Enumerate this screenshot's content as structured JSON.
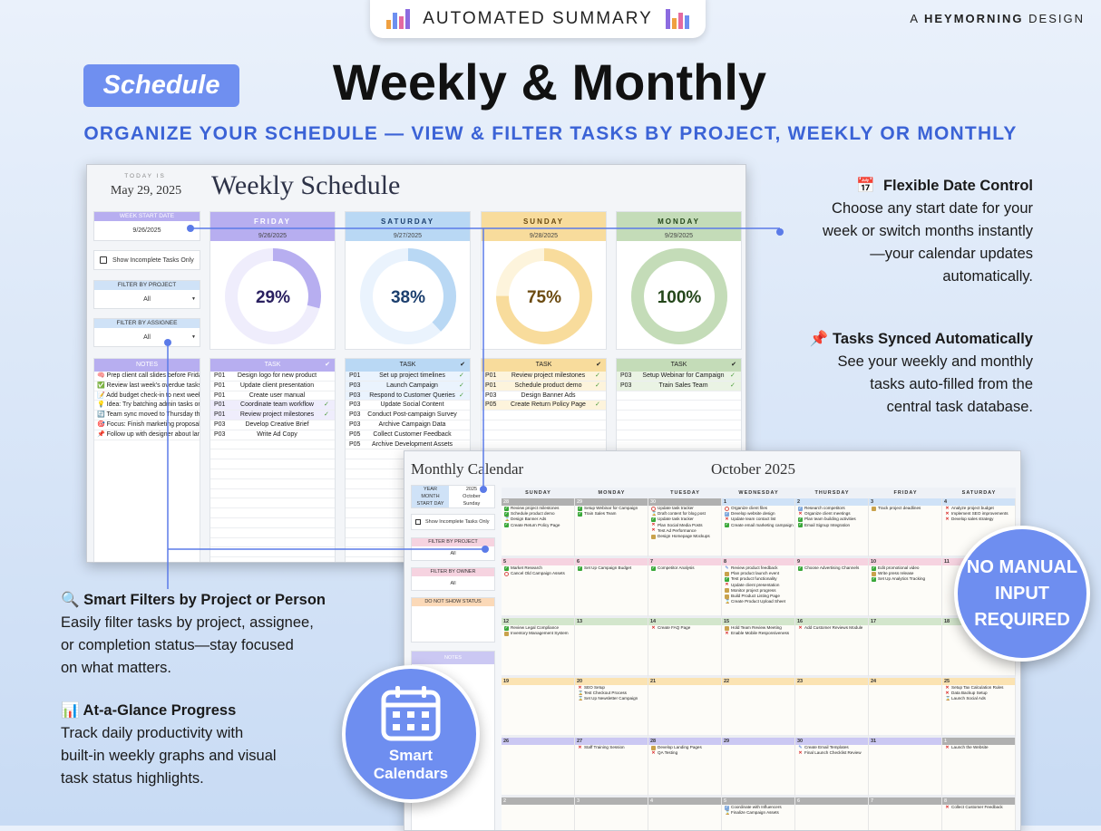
{
  "header": {
    "pill_label": "AUTOMATED SUMMARY",
    "brand_prefix": "A",
    "brand_name": "HEYMORNING",
    "brand_suffix": "DESIGN",
    "badge": "Schedule",
    "title": "Weekly & Monthly",
    "subtitle": "ORGANIZE YOUR SCHEDULE — VIEW & FILTER TASKS BY PROJECT, WEEKLY OR MONTHLY"
  },
  "colors": {
    "accent": "#6f8ff0",
    "subtitle": "#3b63d6",
    "connector": "#5b7be8"
  },
  "weekly": {
    "today_label": "TODAY IS",
    "today": "May 29, 2025",
    "title": "Weekly Schedule",
    "week_start_label": "WEEK START DATE",
    "week_start": "9/26/2025",
    "incomplete_label": "Show Incomplete Tasks Only",
    "filter_project_label": "FILTER BY PROJECT",
    "filter_project": "All",
    "filter_assignee_label": "FILTER BY ASSIGNEE",
    "filter_assignee": "All",
    "notes_label": "NOTES",
    "notes": [
      "🧠 Prep client call slides before Friday",
      "✅ Review last week's overdue tasks",
      "📝 Add budget check-in to next week's",
      "💡 Idea: Try batching admin tasks on T",
      "🔄 Team sync moved to Thursday this",
      "🎯 Focus: Finish marketing proposal b",
      "📌 Follow up with designer about land"
    ],
    "task_header": "TASK",
    "check_header": "✔",
    "days": [
      {
        "name": "FRIDAY",
        "date": "9/26/2025",
        "progress": 29,
        "color": "#b7aef0",
        "light": "#efedfc",
        "text": "#2a2060",
        "tasks": [
          [
            "P01",
            "Design logo for new product",
            false
          ],
          [
            "P01",
            "Update client presentation",
            false
          ],
          [
            "P01",
            "Create user manual",
            false
          ],
          [
            "P01",
            "Coordinate team workflow",
            true
          ],
          [
            "P01",
            "Review project milestones",
            true
          ],
          [
            "P03",
            "Develop Creative Brief",
            false
          ],
          [
            "P03",
            "Write Ad Copy",
            false
          ]
        ]
      },
      {
        "name": "SATURDAY",
        "date": "9/27/2025",
        "progress": 38,
        "color": "#b9d8f4",
        "light": "#eaf3fd",
        "text": "#1c3f6e",
        "tasks": [
          [
            "P01",
            "Set up project timelines",
            true
          ],
          [
            "P03",
            "Launch Campaign",
            true
          ],
          [
            "P03",
            "Respond to Customer Queries",
            true
          ],
          [
            "P03",
            "Update Social Content",
            false
          ],
          [
            "P03",
            "Conduct Post-campaign Survey",
            false
          ],
          [
            "P03",
            "Archive Campaign Data",
            false
          ],
          [
            "P05",
            "Collect Customer Feedback",
            false
          ],
          [
            "P05",
            "Archive Development Assets",
            false
          ]
        ]
      },
      {
        "name": "SUNDAY",
        "date": "9/28/2025",
        "progress": 75,
        "color": "#f8dc9c",
        "light": "#fdf4dc",
        "text": "#6b4a10",
        "tasks": [
          [
            "P01",
            "Review project milestones",
            true
          ],
          [
            "P01",
            "Schedule product demo",
            true
          ],
          [
            "P03",
            "Design Banner Ads",
            false
          ],
          [
            "P05",
            "Create Return Policy Page",
            true
          ]
        ]
      },
      {
        "name": "MONDAY",
        "date": "9/29/2025",
        "progress": 100,
        "color": "#c4dcb8",
        "light": "#eaf3e4",
        "text": "#24461a",
        "tasks": [
          [
            "P03",
            "Setup Webinar for Campaign",
            true
          ],
          [
            "P03",
            "Train Sales Team",
            true
          ]
        ]
      }
    ]
  },
  "monthly": {
    "title": "Monthly Calendar",
    "month_title": "October 2025",
    "year_label": "YEAR",
    "year": "2025",
    "month_label": "MONTH",
    "month": "October",
    "start_day_label": "START DAY",
    "start_day": "Sunday",
    "incomplete_label": "Show Incomplete Tasks Only",
    "filter_project_label": "FILTER BY PROJECT",
    "filter_project": "All",
    "filter_owner_label": "FILTER BY OWNER",
    "filter_owner": "All",
    "do_not_show_label": "DO NOT SHOW STATUS",
    "notes_label": "NOTES",
    "weekdays": [
      "SUNDAY",
      "MONDAY",
      "TUESDAY",
      "WEDNESDAY",
      "THURSDAY",
      "FRIDAY",
      "SATURDAY"
    ],
    "weeks": [
      {
        "color": "#cfe2f7",
        "days": [
          {
            "d": "28",
            "other": true,
            "tasks": [
              [
                "done",
                "Review project milestones"
              ],
              [
                "done",
                "Schedule product demo"
              ],
              [
                "hour",
                "Design Banner Ads"
              ],
              [
                "done",
                "Create Return Policy Page"
              ]
            ]
          },
          {
            "d": "29",
            "other": true,
            "tasks": [
              [
                "done",
                "Setup Webinar for Campaign"
              ],
              [
                "done",
                "Train Sales Team"
              ]
            ]
          },
          {
            "d": "30",
            "other": true,
            "tasks": [
              [
                "block",
                "Update task tracker"
              ],
              [
                "hour",
                "Draft content for blog post"
              ],
              [
                "done",
                "Update task tracker"
              ],
              [
                "x",
                "Plan Social Media Posts"
              ],
              [
                "x",
                "Test Ad Performance"
              ],
              [
                "plan",
                "Design Homepage Mockups"
              ]
            ]
          },
          {
            "d": "1",
            "tasks": [
              [
                "block",
                "Organize client files"
              ],
              [
                "review",
                "Develop website design"
              ],
              [
                "x",
                "Update team contact list"
              ],
              [
                "done",
                "Create email marketing campaign"
              ]
            ]
          },
          {
            "d": "2",
            "tasks": [
              [
                "review",
                "Research competitors"
              ],
              [
                "x",
                "Organize client meetings"
              ],
              [
                "done",
                "Plan team building activities"
              ],
              [
                "done",
                "Email Signup Integration"
              ]
            ]
          },
          {
            "d": "3",
            "tasks": [
              [
                "plan",
                "Track project deadlines"
              ]
            ]
          },
          {
            "d": "4",
            "tasks": [
              [
                "x",
                "Analyze project budget"
              ],
              [
                "x",
                "Implement SEO improvements"
              ],
              [
                "x",
                "Develop sales strategy"
              ]
            ]
          }
        ]
      },
      {
        "color": "#f6d3e0",
        "days": [
          {
            "d": "5",
            "tasks": [
              [
                "done",
                "Market Research"
              ],
              [
                "block",
                "Cancel Old Campaign Assets"
              ]
            ]
          },
          {
            "d": "6",
            "tasks": [
              [
                "done",
                "Set Up Campaign Budget"
              ]
            ]
          },
          {
            "d": "7",
            "tasks": [
              [
                "done",
                "Competitor Analysis"
              ]
            ]
          },
          {
            "d": "8",
            "tasks": [
              [
                "edit",
                "Review product feedback"
              ],
              [
                "plan",
                "Plan product launch event"
              ],
              [
                "done",
                "Test product functionality"
              ],
              [
                "x",
                "Update client presentation"
              ],
              [
                "plan",
                "Monitor project progress"
              ],
              [
                "plan",
                "Build Product Listing Page"
              ],
              [
                "hour",
                "Create Product Upload Sheet"
              ]
            ]
          },
          {
            "d": "9",
            "tasks": [
              [
                "done",
                "Choose Advertising Channels"
              ]
            ]
          },
          {
            "d": "10",
            "tasks": [
              [
                "done",
                "Edit promotional video"
              ],
              [
                "plan",
                "Write press release"
              ],
              [
                "done",
                "Set Up Analytics Tracking"
              ]
            ]
          },
          {
            "d": "11",
            "tasks": []
          }
        ]
      },
      {
        "color": "#d3e6cc",
        "days": [
          {
            "d": "12",
            "tasks": [
              [
                "done",
                "Review Legal Compliance"
              ],
              [
                "plan",
                "Inventory Management System"
              ]
            ]
          },
          {
            "d": "13",
            "tasks": []
          },
          {
            "d": "14",
            "tasks": [
              [
                "x",
                "Create FAQ Page"
              ]
            ]
          },
          {
            "d": "15",
            "tasks": [
              [
                "plan",
                "Hold Team Review Meeting"
              ],
              [
                "x",
                "Enable Mobile Responsiveness"
              ]
            ]
          },
          {
            "d": "16",
            "tasks": [
              [
                "x",
                "Add Customer Reviews Module"
              ]
            ]
          },
          {
            "d": "17",
            "tasks": []
          },
          {
            "d": "18",
            "tasks": []
          }
        ]
      },
      {
        "color": "#fbe3b2",
        "days": [
          {
            "d": "19",
            "tasks": []
          },
          {
            "d": "20",
            "tasks": [
              [
                "x",
                "SEO Setup"
              ],
              [
                "hour",
                "Test Checkout Process"
              ],
              [
                "hour",
                "Set Up Newsletter Campaign"
              ]
            ]
          },
          {
            "d": "21",
            "tasks": []
          },
          {
            "d": "22",
            "tasks": []
          },
          {
            "d": "23",
            "tasks": []
          },
          {
            "d": "24",
            "tasks": []
          },
          {
            "d": "25",
            "tasks": [
              [
                "x",
                "Setup Tax Calculation Rules"
              ],
              [
                "x",
                "Data Backup Setup"
              ],
              [
                "hour",
                "Launch Social Ads"
              ]
            ]
          }
        ]
      },
      {
        "color": "#cbc8f3",
        "days": [
          {
            "d": "26",
            "tasks": []
          },
          {
            "d": "27",
            "tasks": [
              [
                "x",
                "Staff Training Session"
              ]
            ]
          },
          {
            "d": "28",
            "tasks": [
              [
                "plan",
                "Develop Landing Pages"
              ],
              [
                "x",
                "QA Testing"
              ]
            ]
          },
          {
            "d": "29",
            "tasks": []
          },
          {
            "d": "30",
            "tasks": [
              [
                "edit",
                "Create Email Templates"
              ],
              [
                "x",
                "Final Launch Checklist Review"
              ]
            ]
          },
          {
            "d": "31",
            "tasks": []
          },
          {
            "d": "1",
            "other": true,
            "tasks": [
              [
                "x",
                "Launch the Website"
              ]
            ]
          }
        ]
      },
      {
        "color": "#b0b0b0",
        "days": [
          {
            "d": "2",
            "other": true,
            "tasks": []
          },
          {
            "d": "3",
            "other": true,
            "tasks": []
          },
          {
            "d": "4",
            "other": true,
            "tasks": []
          },
          {
            "d": "5",
            "other": true,
            "tasks": [
              [
                "review",
                "Coordinate with Influencers"
              ],
              [
                "hour",
                "Finalize Campaign Assets"
              ]
            ]
          },
          {
            "d": "6",
            "other": true,
            "tasks": []
          },
          {
            "d": "7",
            "other": true,
            "tasks": []
          },
          {
            "d": "8",
            "other": true,
            "tasks": [
              [
                "x",
                "Collect Customer Feedback"
              ]
            ]
          }
        ]
      }
    ]
  },
  "features": {
    "date_control": {
      "icon": "calendar-icon",
      "title": "Flexible Date Control",
      "lines": [
        "Choose any start date for your",
        "week or switch months instantly",
        "—your calendar updates",
        "automatically."
      ]
    },
    "synced": {
      "icon": "pushpin-icon",
      "title": "Tasks Synced Automatically",
      "lines": [
        "See your weekly and monthly",
        "tasks auto-filled from the",
        "central task database."
      ]
    },
    "filters": {
      "icon": "magnifier-icon",
      "title": "Smart Filters by Project or Person",
      "lines": [
        "Easily filter tasks by project, assignee,",
        "or completion status—stay focused",
        "on what matters."
      ]
    },
    "progress": {
      "icon": "bar-chart-icon",
      "title": "At-a-Glance Progress",
      "lines": [
        "Track daily productivity with",
        "built-in weekly graphs and visual",
        "task status highlights."
      ]
    }
  },
  "badges": {
    "no_manual": [
      "NO MANUAL",
      "INPUT",
      "REQUIRED"
    ],
    "smart_calendars": [
      "Smart",
      "Calendars"
    ]
  }
}
